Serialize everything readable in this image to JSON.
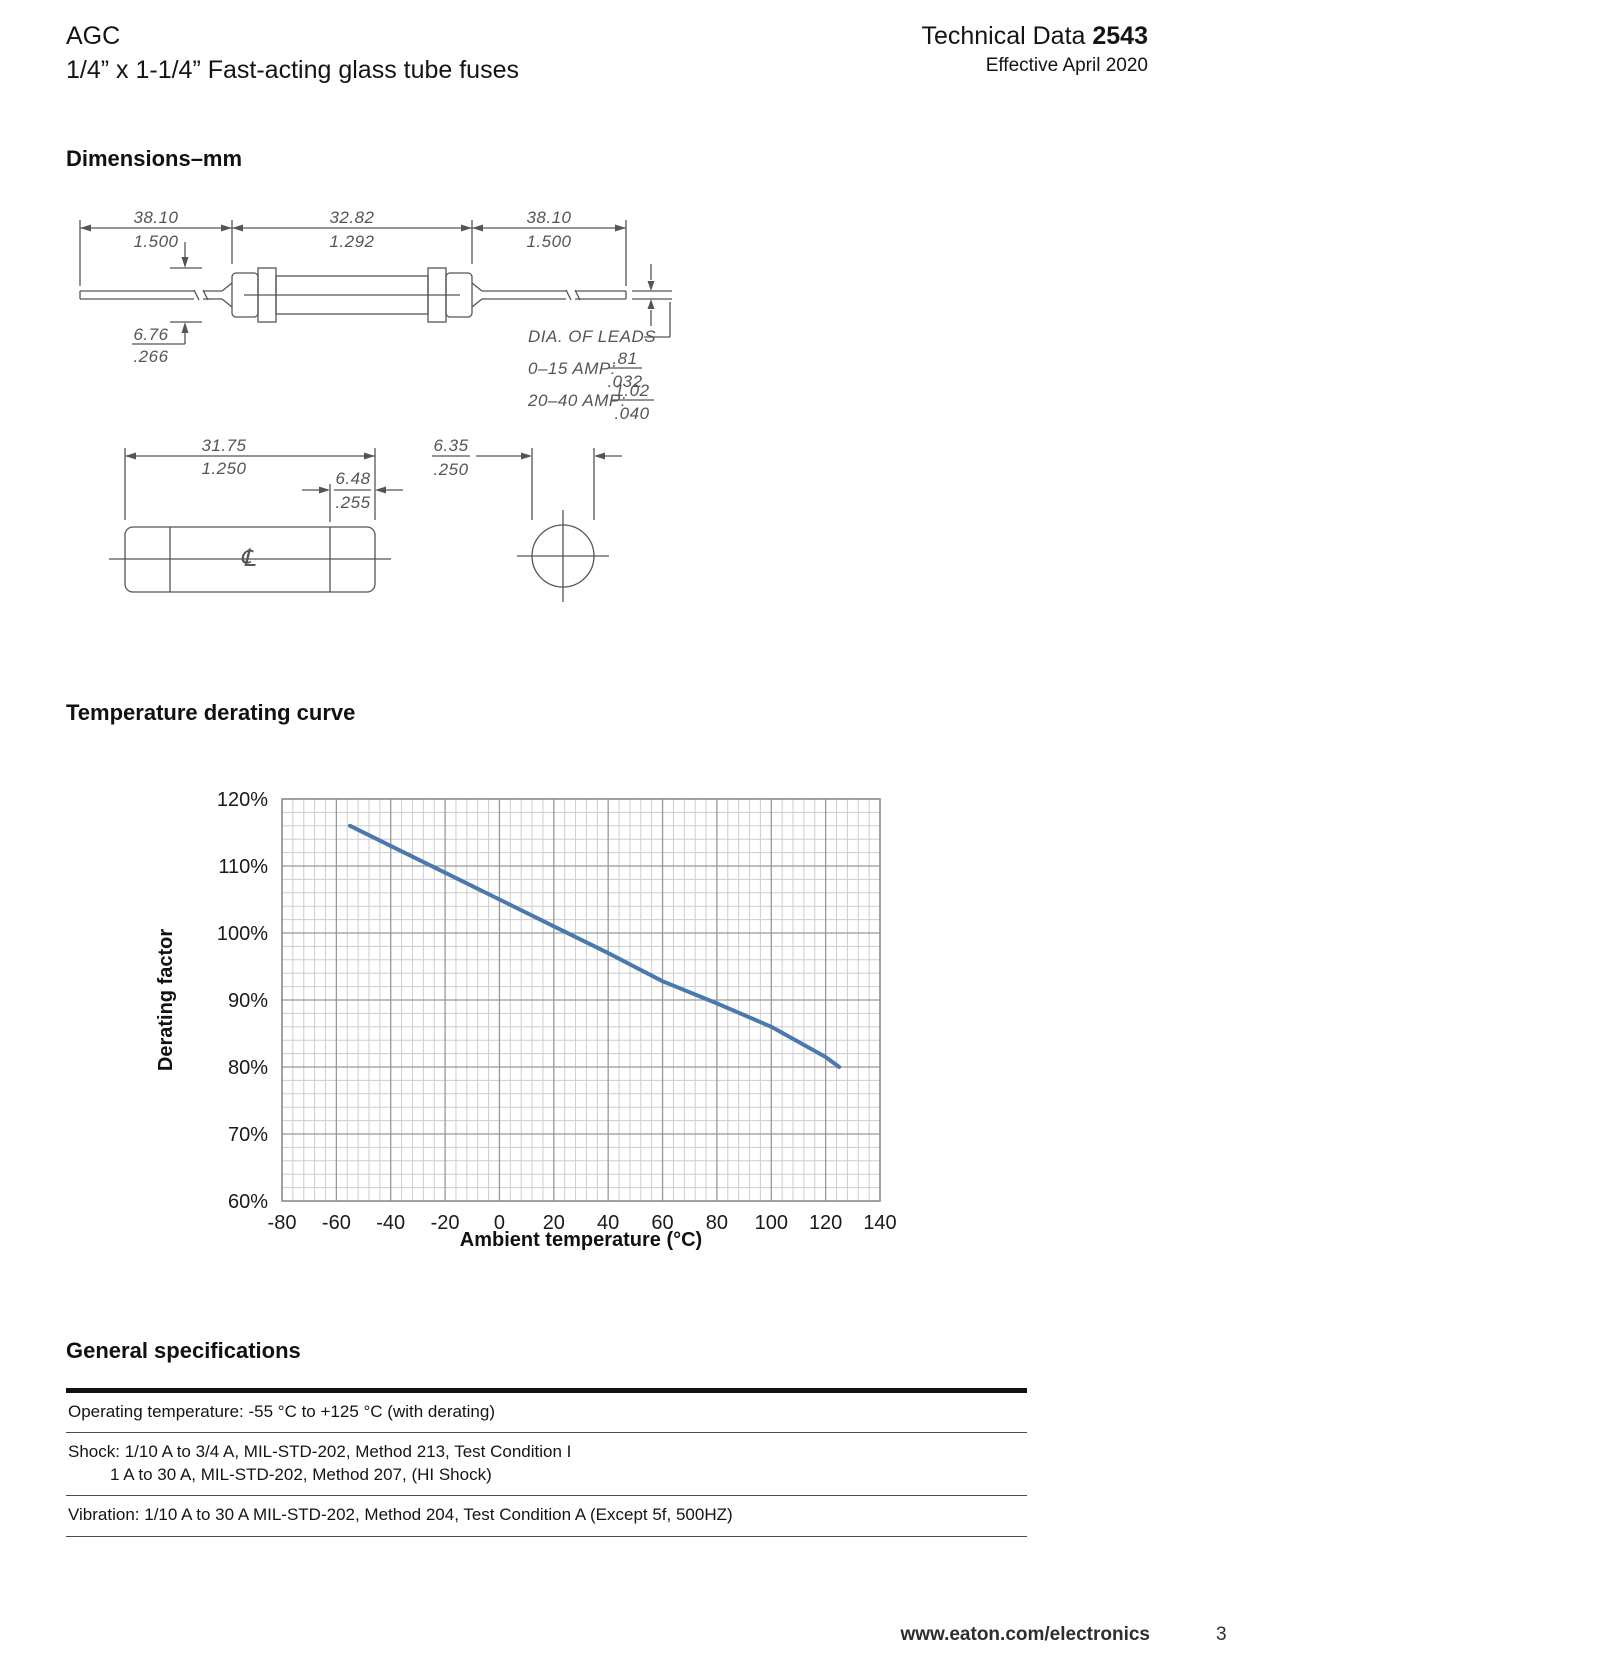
{
  "header": {
    "product_line1": "AGC",
    "product_line2": "1/4” x 1-1/4” Fast-acting glass tube fuses",
    "doc_label": "Technical Data ",
    "doc_number": "2543",
    "effective_date": "Effective April 2020"
  },
  "dimensions_section": {
    "heading": "Dimensions–mm",
    "fuse_with_leads": {
      "left_lead_mm": "38.10",
      "left_lead_in": "1.500",
      "body_mm": "32.82",
      "body_in": "1.292",
      "right_lead_mm": "38.10",
      "right_lead_in": "1.500",
      "tube_dia_mm": "6.76",
      "tube_dia_in": ".266",
      "leads_note": "DIA. OF LEADS",
      "leads_row1_label": "0–15 AMP:",
      "leads_row1_mm": ".81",
      "leads_row1_in": ".032",
      "leads_row2_label": "20–40 AMP:",
      "leads_row2_mm": "1.02",
      "leads_row2_in": ".040"
    },
    "fuse_body": {
      "length_mm": "31.75",
      "length_in": "1.250",
      "cap_mm": "6.48",
      "cap_in": ".255",
      "dia_mm": "6.35",
      "dia_in": ".250",
      "centerline_symbol": "℄"
    }
  },
  "chart_section": {
    "heading": "Temperature derating curve"
  },
  "chart_data": {
    "type": "line",
    "title": "Temperature derating curve",
    "xlabel": "Ambient temperature (°C)",
    "ylabel": "Derating factor",
    "xlim": [
      -80,
      140
    ],
    "ylim": [
      60,
      120
    ],
    "x_major_step": 20,
    "y_major_step": 10,
    "x_minor_step": 4,
    "y_minor_step": 2,
    "x_tick_labels": [
      "-80",
      "-60",
      "-40",
      "-20",
      "0",
      "20",
      "40",
      "60",
      "80",
      "100",
      "120",
      "140"
    ],
    "y_tick_labels": [
      "60%",
      "70%",
      "80%",
      "90%",
      "100%",
      "110%",
      "120%"
    ],
    "grid": "major-and-minor",
    "legend": "none",
    "series": [
      {
        "name": "Derating factor vs ambient temperature",
        "color": "#4a79b0",
        "points": [
          [
            -55,
            116
          ],
          [
            -40,
            113
          ],
          [
            -20,
            109
          ],
          [
            0,
            105
          ],
          [
            20,
            101
          ],
          [
            40,
            97
          ],
          [
            60,
            92.8
          ],
          [
            80,
            89.5
          ],
          [
            100,
            86
          ],
          [
            120,
            81.5
          ],
          [
            125,
            80
          ]
        ]
      }
    ]
  },
  "specs_section": {
    "heading": "General specifications",
    "rows": [
      {
        "lines": [
          "Operating temperature: -55 °C to +125 °C (with derating)"
        ]
      },
      {
        "lines": [
          "Shock: 1/10 A to 3/4 A, MIL-STD-202, Method 213, Test Condition I",
          "1 A to 30 A,  MIL-STD-202, Method 207, (HI Shock)"
        ]
      },
      {
        "lines": [
          "Vibration: 1/10 A to 30 A MIL-STD-202, Method 204, Test Condition A (Except 5f, 500HZ)"
        ]
      }
    ]
  },
  "footer": {
    "url": "www.eaton.com/electronics",
    "page_number": "3"
  }
}
